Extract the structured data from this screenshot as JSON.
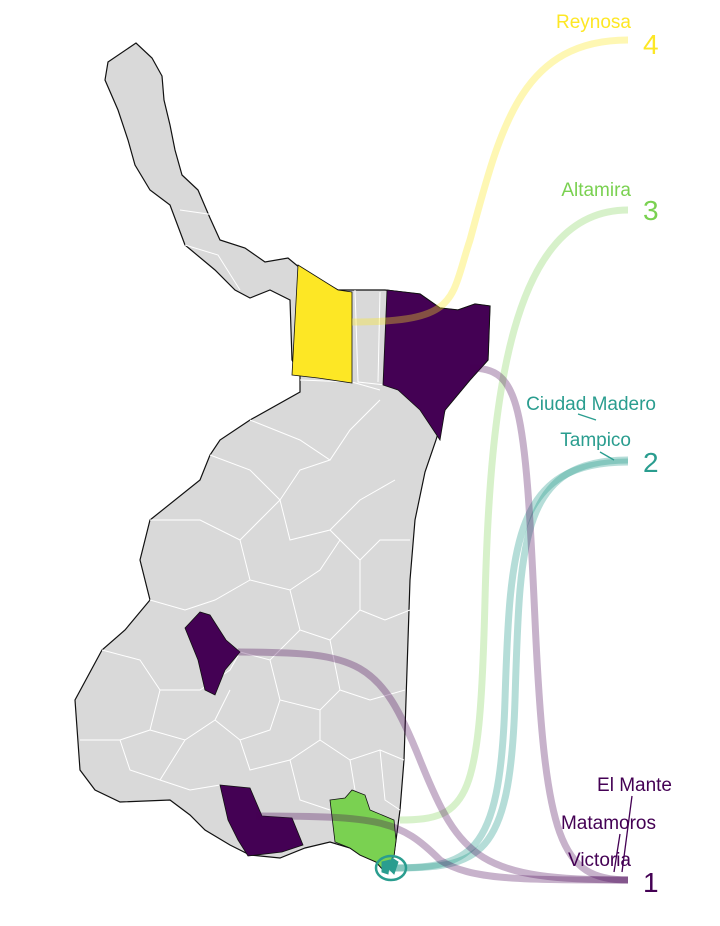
{
  "map": {
    "region_fill": "#d9d9d9",
    "border_color": "#ffffff",
    "outline_color": "#111111"
  },
  "ranks": [
    {
      "rank": "4",
      "color": "#fde725",
      "cities": [
        "Reynosa"
      ]
    },
    {
      "rank": "3",
      "color": "#7ad151",
      "cities": [
        "Altamira"
      ]
    },
    {
      "rank": "2",
      "color": "#2a9d8f",
      "cities": [
        "Ciudad Madero",
        "Tampico"
      ]
    },
    {
      "rank": "1",
      "color": "#440154",
      "cities": [
        "El Mante",
        "Matamoros",
        "Victoria"
      ]
    }
  ],
  "highlighted_municipalities": [
    {
      "name": "Reynosa",
      "rank": "4",
      "color": "#fde725"
    },
    {
      "name": "Altamira",
      "rank": "3",
      "color": "#7ad151"
    },
    {
      "name": "Ciudad Madero",
      "rank": "2",
      "color": "#2a9d8f"
    },
    {
      "name": "Tampico",
      "rank": "2",
      "color": "#2a9d8f"
    },
    {
      "name": "Matamoros",
      "rank": "1",
      "color": "#440154"
    },
    {
      "name": "Victoria",
      "rank": "1",
      "color": "#440154"
    },
    {
      "name": "El Mante",
      "rank": "1",
      "color": "#440154"
    }
  ]
}
